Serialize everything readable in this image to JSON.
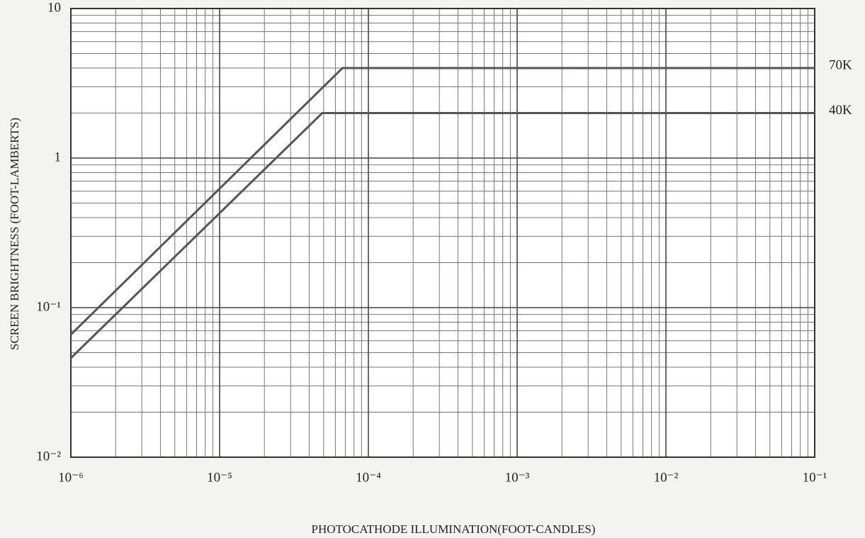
{
  "chart_data": {
    "type": "line",
    "xlabel": "PHOTOCATHODE ILLUMINATION(FOOT-CANDLES)",
    "ylabel": "SCREEN BRIGHTNESS (FOOT-LAMBERTS)",
    "xscale": "log",
    "yscale": "log",
    "grid": true,
    "xlim": [
      1e-06,
      0.1
    ],
    "ylim": [
      0.01,
      10
    ],
    "xticks": [
      {
        "value": 1e-06,
        "label": "10⁻⁶"
      },
      {
        "value": 1e-05,
        "label": "10⁻⁵"
      },
      {
        "value": 0.0001,
        "label": "10⁻⁴"
      },
      {
        "value": 0.001,
        "label": "10⁻³"
      },
      {
        "value": 0.01,
        "label": "10⁻²"
      },
      {
        "value": 0.1,
        "label": "10⁻¹"
      }
    ],
    "yticks": [
      {
        "value": 0.01,
        "label": "10⁻²"
      },
      {
        "value": 0.1,
        "label": "10⁻¹"
      },
      1,
      10
    ],
    "series": [
      {
        "name": "70K",
        "color": "#555555",
        "x": [
          1e-06,
          6.7e-05,
          0.1
        ],
        "values": [
          0.066,
          4,
          4
        ]
      },
      {
        "name": "40K",
        "color": "#555555",
        "x": [
          1e-06,
          4.9e-05,
          0.1
        ],
        "values": [
          0.046,
          2,
          2
        ]
      }
    ]
  }
}
